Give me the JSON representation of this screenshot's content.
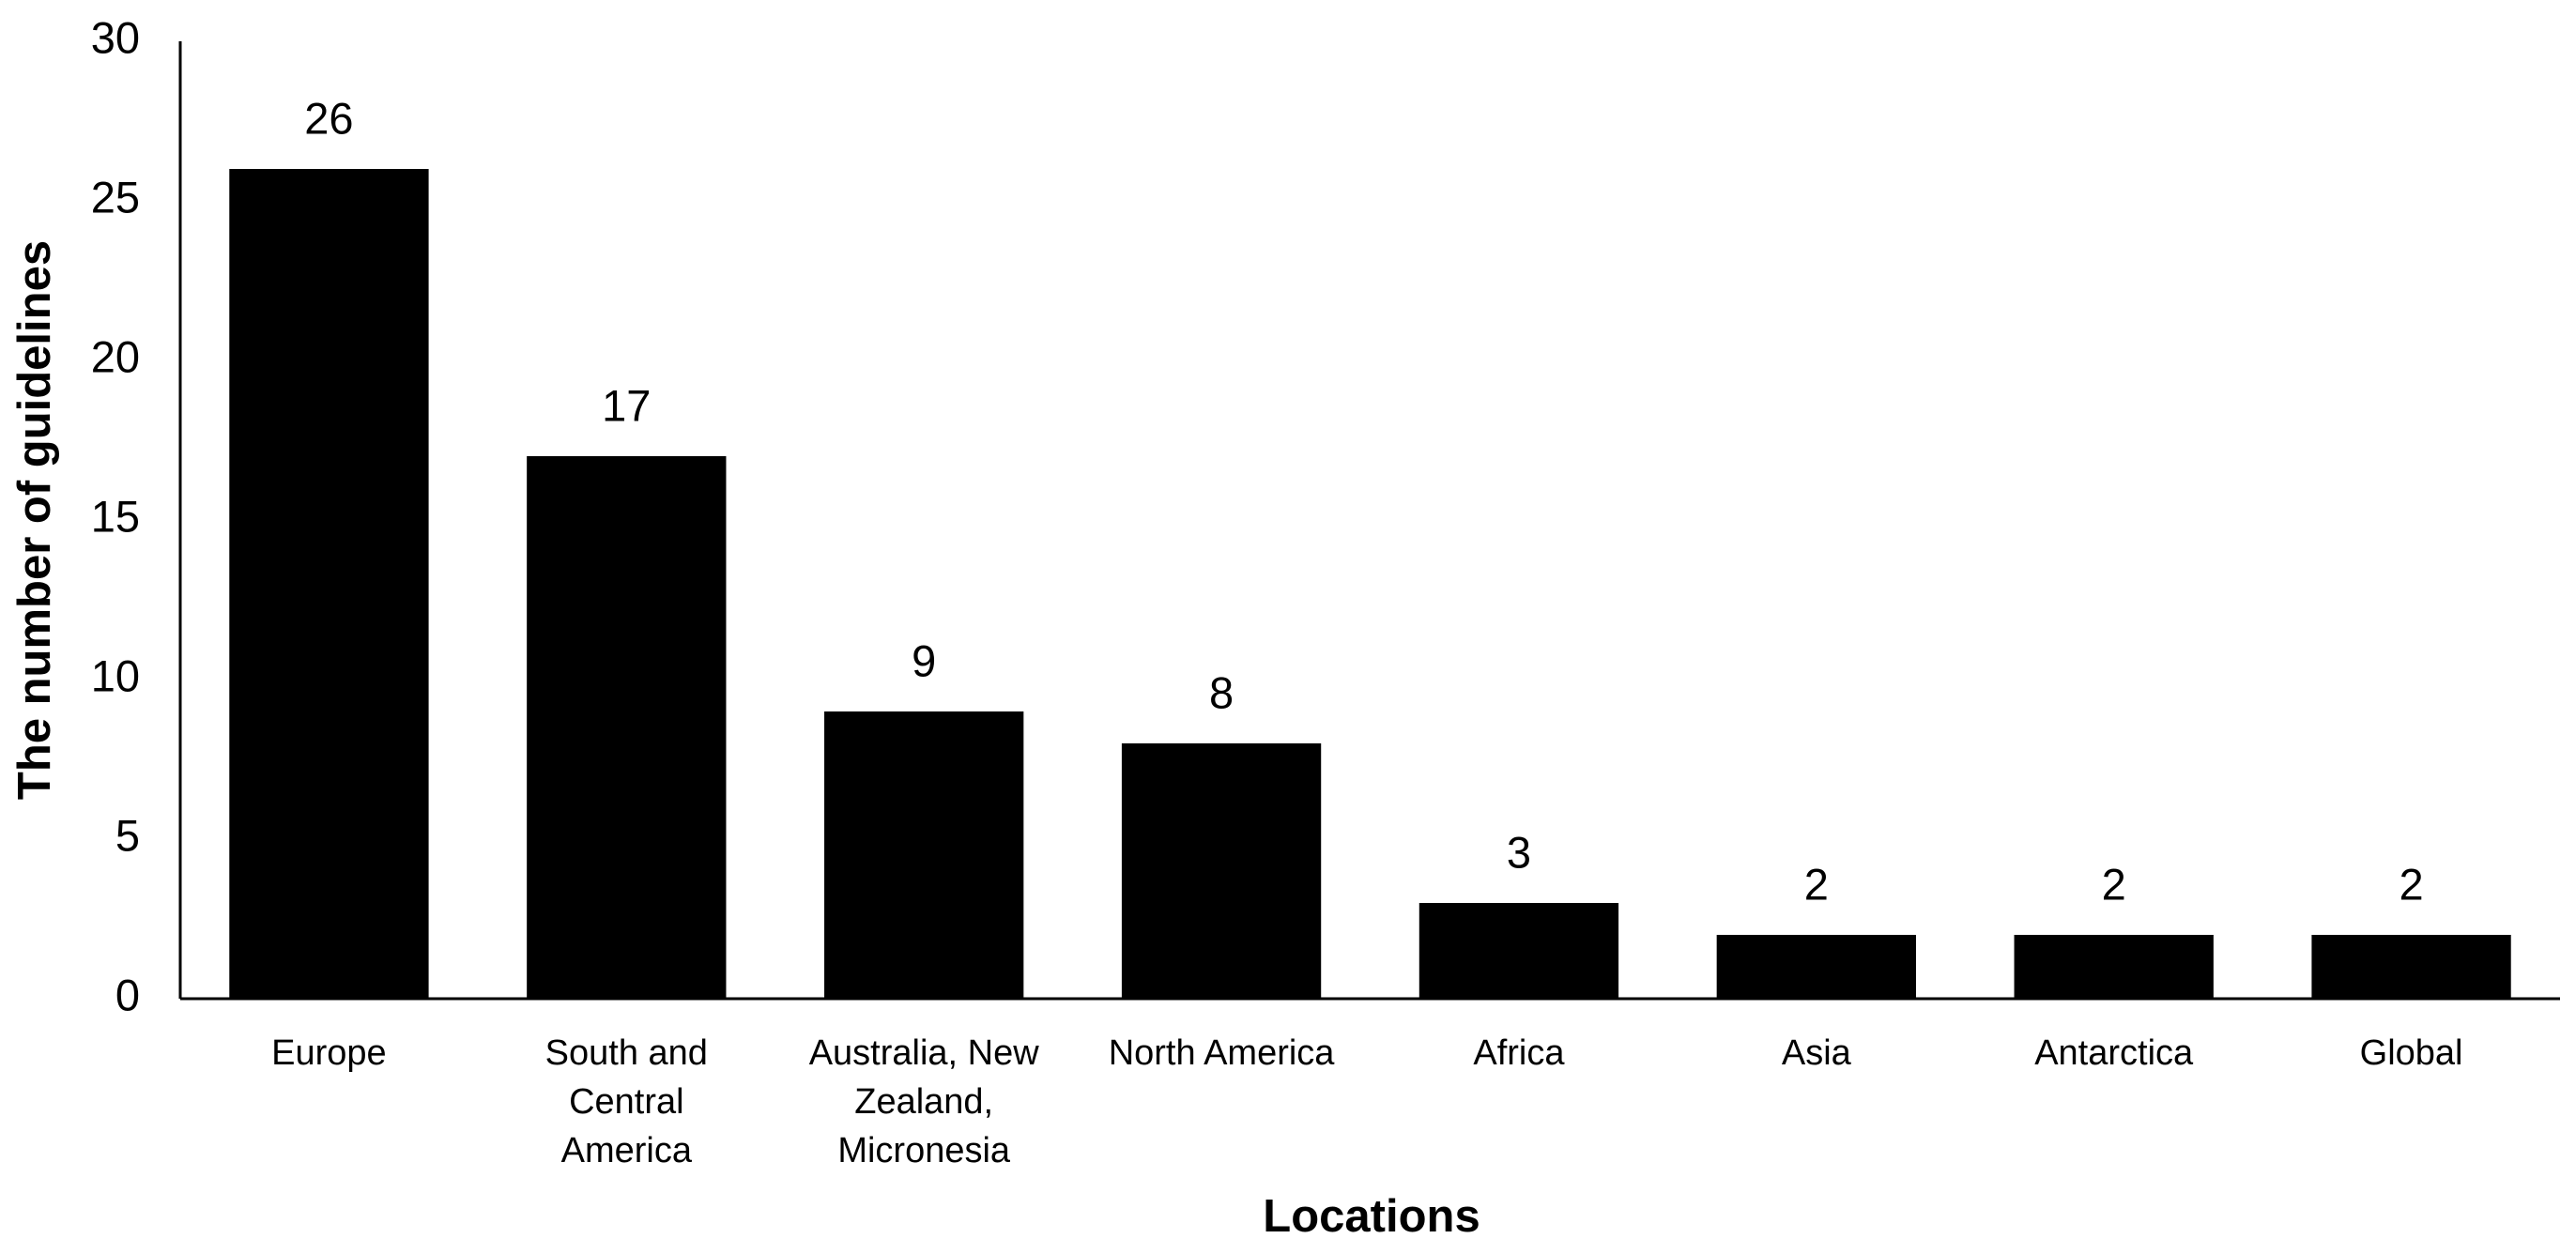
{
  "chart_data": {
    "type": "bar",
    "x_label": "Locations",
    "y_label": "The number of guidelines",
    "categories": [
      "Europe",
      "South and Central America",
      "Australia, New Zealand, Micronesia",
      "North America",
      "Africa",
      "Asia",
      "Antarctica",
      "Global"
    ],
    "values": [
      26,
      17,
      9,
      8,
      3,
      2,
      2,
      2
    ],
    "color": "#000000",
    "ylim": [
      0,
      30
    ],
    "yticks": [
      0,
      5,
      10,
      15,
      20,
      25,
      30
    ],
    "grid": false
  }
}
